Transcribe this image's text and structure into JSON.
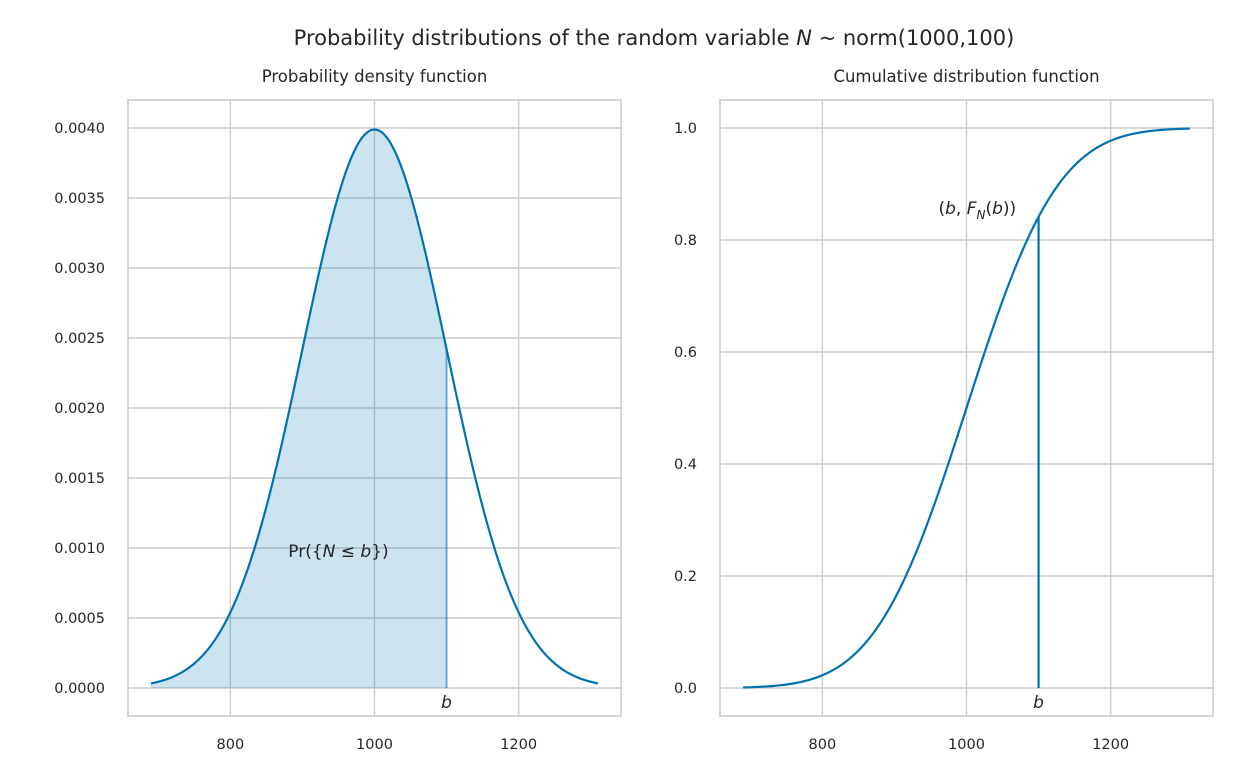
{
  "figure": {
    "suptitle": "Probability distributions of the random variable N ~ norm(1000,100)",
    "suptitle_parts": [
      "Probability distributions of the random variable ",
      "N",
      " ~ norm(1000,100)"
    ]
  },
  "colors": {
    "line": "#0072b2",
    "fill": "#0072b2",
    "grid": "#cccccc",
    "spine": "#cccccc",
    "text": "#262626"
  },
  "chart_data": [
    {
      "type": "area",
      "title": "Probability density function",
      "xlabel": "",
      "ylabel": "",
      "distribution": {
        "family": "normal",
        "mean": 1000,
        "sd": 100
      },
      "x_range": [
        690,
        1310
      ],
      "xlim": [
        658,
        1342
      ],
      "ylim": [
        -0.0002,
        0.0042
      ],
      "xticks": [
        800,
        1000,
        1200
      ],
      "xtick_labels": [
        "800",
        "1000",
        "1200"
      ],
      "yticks": [
        0.0,
        0.0005,
        0.001,
        0.0015,
        0.002,
        0.0025,
        0.003,
        0.0035,
        0.004
      ],
      "ytick_labels": [
        "0.0000",
        "0.0005",
        "0.0010",
        "0.0015",
        "0.0020",
        "0.0025",
        "0.0030",
        "0.0035",
        "0.0040"
      ],
      "shaded_region": {
        "from": 690,
        "to": 1100
      },
      "b": 1100,
      "b_label": "b",
      "area_label": {
        "prefix": "Pr({",
        "var": "N",
        "rel": " ≤ ",
        "bvar": "b",
        "suffix": "})",
        "x": 950,
        "y": 0.00098
      },
      "grid": true
    },
    {
      "type": "line",
      "title": "Cumulative distribution function",
      "xlabel": "",
      "ylabel": "",
      "distribution": {
        "family": "normal",
        "mean": 1000,
        "sd": 100
      },
      "x_range": [
        690,
        1310
      ],
      "xlim": [
        658,
        1342
      ],
      "ylim": [
        -0.05,
        1.05
      ],
      "xticks": [
        800,
        1000,
        1200
      ],
      "xtick_labels": [
        "800",
        "1000",
        "1200"
      ],
      "yticks": [
        0.0,
        0.2,
        0.4,
        0.6,
        0.8,
        1.0
      ],
      "ytick_labels": [
        "0.0",
        "0.2",
        "0.4",
        "0.6",
        "0.8",
        "1.0"
      ],
      "b": 1100,
      "F_b": 0.8413,
      "b_label": "b",
      "point_label": {
        "open": "(",
        "bvar": "b",
        "sep": ", ",
        "F": "F",
        "sub": "N",
        "argopen": "(",
        "arg": "b",
        "close": "))",
        "x": 1015,
        "y": 0.857
      },
      "grid": true
    }
  ]
}
